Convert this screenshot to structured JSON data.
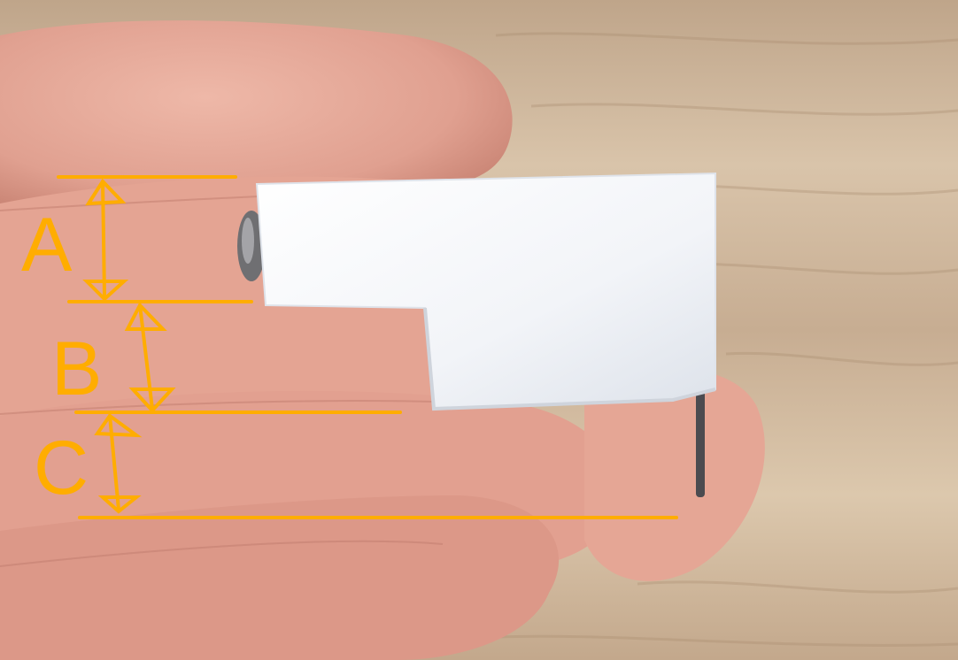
{
  "photo": {
    "subject": "white-plastic-block-held-in-hand",
    "colors": {
      "wood_light": "#d8c3a8",
      "wood_dark": "#b89b7e",
      "skin": "#e3a595",
      "skin_shadow": "#c98474",
      "plastic": "#f3f5f8",
      "plastic_shadow": "#dfe3ea",
      "metal": "#6f6f72",
      "annotation": "#ffad00"
    }
  },
  "annotations": {
    "labels": [
      {
        "id": "a",
        "text": "A"
      },
      {
        "id": "b",
        "text": "B"
      },
      {
        "id": "c",
        "text": "C"
      }
    ]
  }
}
